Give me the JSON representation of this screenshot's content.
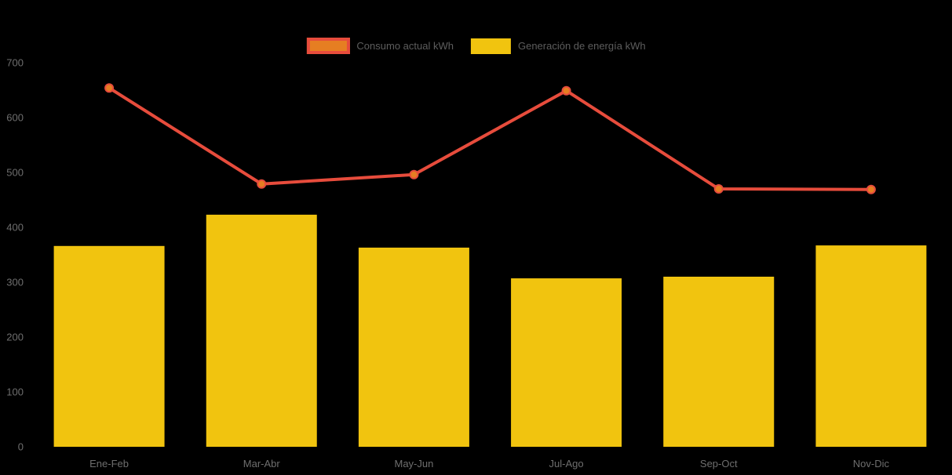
{
  "chart_data": {
    "type": "combo",
    "categories": [
      "Ene-Feb",
      "Mar-Abr",
      "May-Jun",
      "Jul-Ago",
      "Sep-Oct",
      "Nov-Dic"
    ],
    "series": [
      {
        "name": "Consumo actual kWh",
        "type": "line",
        "color": "#e74c3c",
        "marker_fill": "#e67e22",
        "values": [
          654,
          479,
          496,
          649,
          470,
          469
        ]
      },
      {
        "name": "Generación de energía kWh",
        "type": "bar",
        "color": "#f1c40f",
        "values": [
          366,
          423,
          363,
          307,
          310,
          367
        ]
      }
    ],
    "title": "",
    "xlabel": "",
    "ylabel": "",
    "ylim": [
      0,
      700
    ],
    "yticks": [
      0,
      100,
      200,
      300,
      400,
      500,
      600,
      700
    ],
    "grid": false,
    "legend_position": "top",
    "background": "#000000",
    "axis_text_color": "#6e6e6e",
    "legend_text_color": "#5d5d5d"
  }
}
